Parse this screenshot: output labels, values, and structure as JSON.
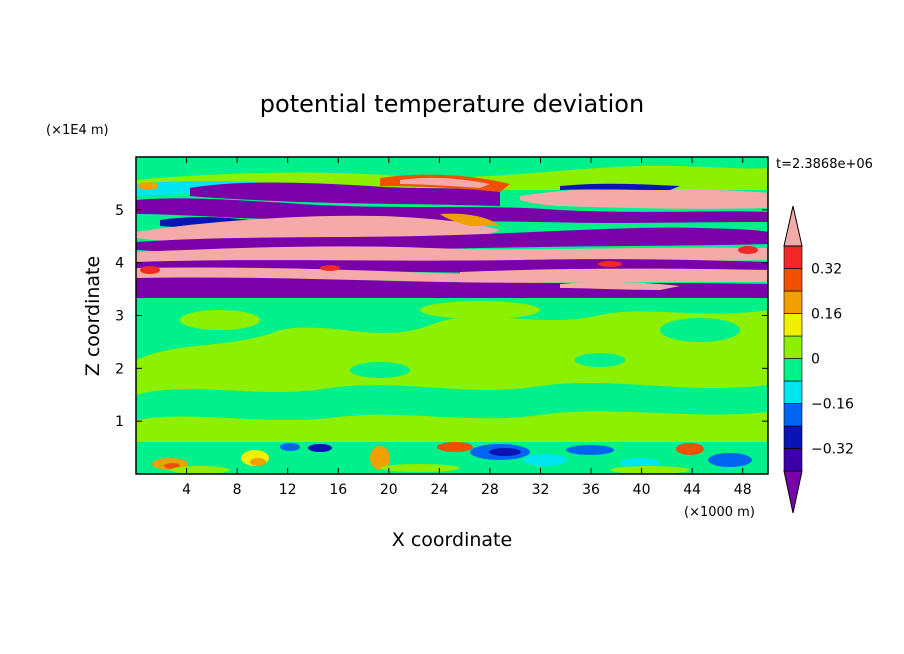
{
  "chart_data": {
    "type": "heatmap",
    "title": "potential temperature deviation",
    "xlabel": "X coordinate",
    "ylabel": "Z coordinate",
    "x_unit": "(×1000 m)",
    "y_unit": "(×1E4 m)",
    "time_label": "t=2.3868e+06",
    "xlim": [
      0,
      50
    ],
    "ylim": [
      0,
      6
    ],
    "x_ticks": [
      4,
      8,
      12,
      16,
      20,
      24,
      28,
      32,
      36,
      40,
      44,
      48
    ],
    "y_ticks": [
      1,
      2,
      3,
      4,
      5
    ],
    "colorbar": {
      "levels": [
        -0.4,
        -0.32,
        -0.24,
        -0.16,
        -0.08,
        0,
        0.08,
        0.16,
        0.24,
        0.32,
        0.4
      ],
      "colors": [
        "#7a00aa",
        "#3c00a8",
        "#0a14b4",
        "#0064f0",
        "#00e6f0",
        "#00f08c",
        "#8cf000",
        "#f0f000",
        "#f0a000",
        "#f05000",
        "#f02828",
        "#f5aaaa"
      ],
      "labels": [
        {
          "value": 0.32,
          "text": "0.32"
        },
        {
          "value": 0.16,
          "text": "0.16"
        },
        {
          "value": 0,
          "text": "0"
        },
        {
          "value": -0.16,
          "text": "−0.16"
        },
        {
          "value": -0.32,
          "text": "−0.32"
        }
      ]
    },
    "bands": [
      {
        "z": [
          0.0,
          0.6
        ],
        "pattern": "near-surface mixed anomalies with orange and blue cells"
      },
      {
        "z": [
          0.6,
          3.35
        ],
        "pattern": "green and light-green mottled field around zero"
      },
      {
        "z": [
          3.35,
          5.9
        ],
        "pattern": "alternating layers of strong positive (pink) and strong negative (purple) deviation"
      }
    ]
  }
}
